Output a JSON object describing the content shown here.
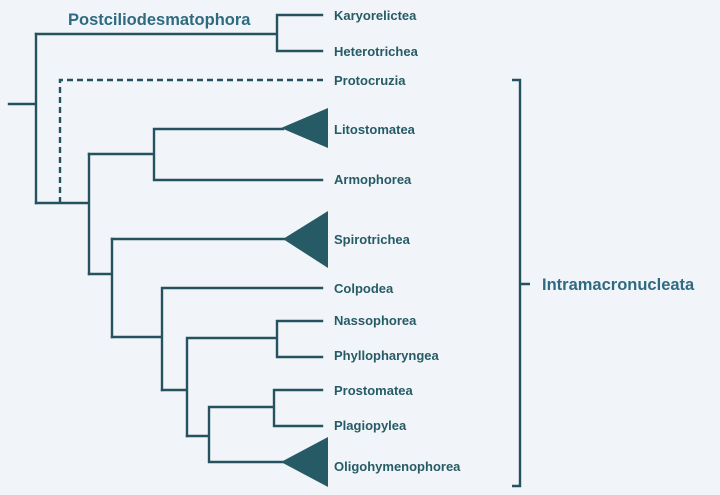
{
  "tree": {
    "groups": {
      "postciliodesmatophora": "Postciliodesmatophora",
      "intramacronucleata": "Intramacronucleata"
    },
    "taxa": {
      "karyorelictea": "Karyorelictea",
      "heterotrichea": "Heterotrichea",
      "protocruzia": "Protocruzia",
      "litostomatea": "Litostomatea",
      "armophorea": "Armophorea",
      "spirotrichea": "Spirotrichea",
      "colpodea": "Colpodea",
      "nassophorea": "Nassophorea",
      "phyllopharyngea": "Phyllopharyngea",
      "prostomatea": "Prostomatea",
      "plagiopylea": "Plagiopylea",
      "oligohymenophorea": "Oligohymenophorea"
    },
    "collapsed_clades": [
      "Litostomatea",
      "Spirotrichea",
      "Oligohymenophorea"
    ],
    "uncertain_branch": "Protocruzia",
    "colors": {
      "background": "#f1f5f9",
      "branch": "#24535f",
      "taxon_text": "#265b66",
      "group_text": "#2f6b80"
    }
  }
}
